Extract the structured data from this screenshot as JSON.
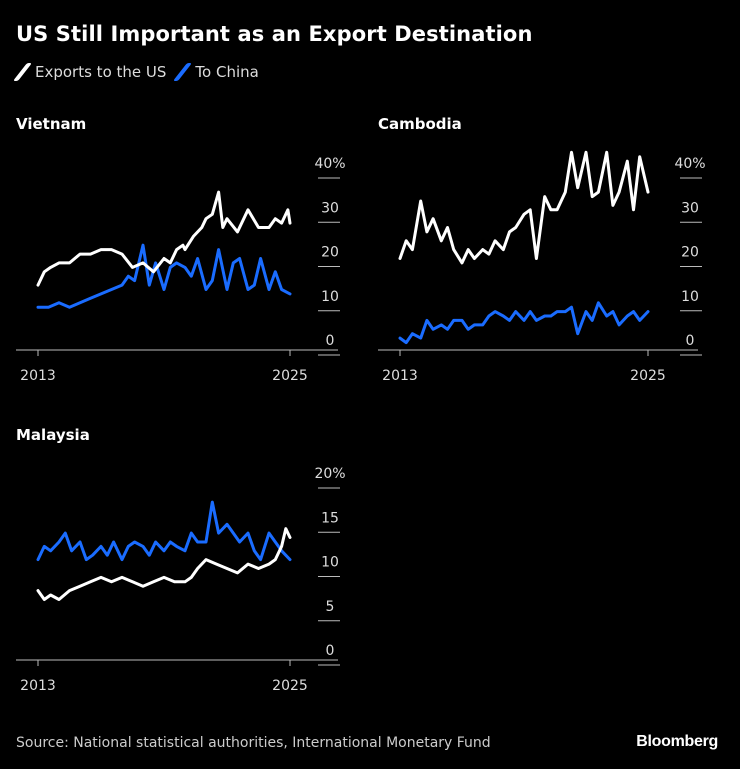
{
  "title": "US Still Important as an Export Destination",
  "legend": [
    {
      "label": "Exports to the US",
      "color": "#ffffff"
    },
    {
      "label": "To China",
      "color": "#1a6cff"
    }
  ],
  "source": "Source: National statistical authorities, International Monetary Fund",
  "brand": "Bloomberg",
  "chart_data": [
    {
      "type": "line",
      "title": "Vietnam",
      "x_range": [
        2013,
        2025
      ],
      "xticks": [
        "2013",
        "2025"
      ],
      "ylim": [
        0,
        40
      ],
      "yticks": [
        "0",
        "10",
        "20",
        "30",
        "40%"
      ],
      "series": [
        {
          "name": "Exports to the US",
          "x": [
            2013,
            2013.3,
            2013.6,
            2014,
            2014.5,
            2015,
            2015.5,
            2016,
            2016.5,
            2017,
            2017.5,
            2018,
            2018.5,
            2019,
            2019.3,
            2019.6,
            2019.9,
            2020,
            2020.4,
            2020.8,
            2021,
            2021.3,
            2021.6,
            2021.8,
            2022,
            2022.5,
            2023,
            2023.5,
            2024,
            2024.3,
            2024.6,
            2024.9,
            2025
          ],
          "values": [
            14,
            17,
            18,
            19,
            19,
            21,
            21,
            22,
            22,
            21,
            18,
            19,
            17,
            20,
            19,
            22,
            23,
            22,
            25,
            27,
            29,
            30,
            35,
            27,
            29,
            26,
            31,
            27,
            27,
            29,
            28,
            31,
            28
          ]
        },
        {
          "name": "To China",
          "x": [
            2013,
            2013.5,
            2014,
            2014.5,
            2015,
            2015.5,
            2016,
            2016.5,
            2017,
            2017.3,
            2017.6,
            2018,
            2018.3,
            2018.6,
            2019,
            2019.3,
            2019.6,
            2020,
            2020.3,
            2020.6,
            2021,
            2021.3,
            2021.6,
            2022,
            2022.3,
            2022.6,
            2023,
            2023.3,
            2023.6,
            2024,
            2024.3,
            2024.6,
            2025
          ],
          "values": [
            9,
            9,
            10,
            9,
            10,
            11,
            12,
            13,
            14,
            16,
            15,
            23,
            14,
            19,
            13,
            18,
            19,
            18,
            16,
            20,
            13,
            15,
            22,
            13,
            19,
            20,
            13,
            14,
            20,
            13,
            17,
            13,
            12
          ]
        }
      ]
    },
    {
      "type": "line",
      "title": "Cambodia",
      "x_range": [
        2013,
        2025
      ],
      "xticks": [
        "2013",
        "2025"
      ],
      "ylim": [
        0,
        40
      ],
      "yticks": [
        "0",
        "10",
        "20",
        "30",
        "40%"
      ],
      "series": [
        {
          "name": "Exports to the US",
          "x": [
            2013,
            2013.3,
            2013.6,
            2014,
            2014.3,
            2014.6,
            2015,
            2015.3,
            2015.6,
            2016,
            2016.3,
            2016.6,
            2017,
            2017.3,
            2017.6,
            2018,
            2018.3,
            2018.6,
            2019,
            2019.3,
            2019.6,
            2020,
            2020.3,
            2020.6,
            2021,
            2021.3,
            2021.6,
            2022,
            2022.3,
            2022.6,
            2023,
            2023.3,
            2023.6,
            2024,
            2024.3,
            2024.6,
            2025
          ],
          "values": [
            20,
            24,
            22,
            33,
            26,
            29,
            24,
            27,
            22,
            19,
            22,
            20,
            22,
            21,
            24,
            22,
            26,
            27,
            30,
            31,
            20,
            34,
            31,
            31,
            35,
            44,
            36,
            44,
            34,
            35,
            44,
            32,
            35,
            42,
            31,
            43,
            35
          ]
        },
        {
          "name": "To China",
          "x": [
            2013,
            2013.3,
            2013.6,
            2014,
            2014.3,
            2014.6,
            2015,
            2015.3,
            2015.6,
            2016,
            2016.3,
            2016.6,
            2017,
            2017.3,
            2017.6,
            2018,
            2018.3,
            2018.6,
            2019,
            2019.3,
            2019.6,
            2020,
            2020.3,
            2020.6,
            2021,
            2021.3,
            2021.6,
            2022,
            2022.3,
            2022.6,
            2023,
            2023.3,
            2023.6,
            2024,
            2024.3,
            2024.6,
            2025
          ],
          "values": [
            2,
            1,
            3,
            2,
            6,
            4,
            5,
            4,
            6,
            6,
            4,
            5,
            5,
            7,
            8,
            7,
            6,
            8,
            6,
            8,
            6,
            7,
            7,
            8,
            8,
            9,
            3,
            8,
            6,
            10,
            7,
            8,
            5,
            7,
            8,
            6,
            8
          ]
        }
      ]
    },
    {
      "type": "line",
      "title": "Malaysia",
      "x_range": [
        2013,
        2025
      ],
      "xticks": [
        "2013",
        "2025"
      ],
      "ylim": [
        0,
        20
      ],
      "yticks": [
        "0",
        "5",
        "10",
        "15",
        "20%"
      ],
      "series": [
        {
          "name": "Exports to the US",
          "x": [
            2013,
            2013.3,
            2013.6,
            2014,
            2014.5,
            2015,
            2015.5,
            2016,
            2016.5,
            2017,
            2017.5,
            2018,
            2018.5,
            2019,
            2019.5,
            2020,
            2020.3,
            2020.6,
            2021,
            2021.5,
            2022,
            2022.5,
            2023,
            2023.5,
            2024,
            2024.3,
            2024.6,
            2024.8,
            2025
          ],
          "values": [
            7.5,
            6.5,
            7,
            6.5,
            7.5,
            8,
            8.5,
            9,
            8.5,
            9,
            8.5,
            8,
            8.5,
            9,
            8.5,
            8.5,
            9,
            10,
            11,
            10.5,
            10,
            9.5,
            10.5,
            10,
            10.5,
            11,
            12.5,
            14.5,
            13.5
          ]
        },
        {
          "name": "To China",
          "x": [
            2013,
            2013.3,
            2013.6,
            2014,
            2014.3,
            2014.6,
            2015,
            2015.3,
            2015.6,
            2016,
            2016.3,
            2016.6,
            2017,
            2017.3,
            2017.6,
            2018,
            2018.3,
            2018.6,
            2019,
            2019.3,
            2019.6,
            2020,
            2020.3,
            2020.6,
            2021,
            2021.3,
            2021.6,
            2022,
            2022.3,
            2022.6,
            2023,
            2023.3,
            2023.6,
            2024,
            2024.3,
            2024.6,
            2025
          ],
          "values": [
            11,
            12.5,
            12,
            13,
            14,
            12,
            13,
            11,
            11.5,
            12.5,
            11.5,
            13,
            11,
            12.5,
            13,
            12.5,
            11.5,
            13,
            12,
            13,
            12.5,
            12,
            14,
            13,
            13,
            17.5,
            14,
            15,
            14,
            13,
            14,
            12,
            11,
            14,
            13,
            12,
            11
          ]
        }
      ]
    }
  ]
}
